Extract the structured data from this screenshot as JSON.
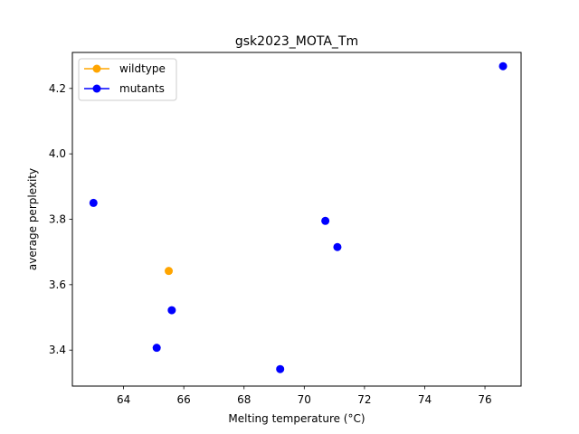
{
  "chart_data": {
    "type": "scatter",
    "title": "gsk2023_MOTA_Tm",
    "xlabel": "Melting temperature (°C)",
    "ylabel": "average perplexity",
    "xlim": [
      62.3,
      77.2
    ],
    "ylim": [
      3.29,
      4.31
    ],
    "xticks": [
      64,
      66,
      68,
      70,
      72,
      74,
      76
    ],
    "yticks": [
      3.4,
      3.6,
      3.8,
      4.0,
      4.2
    ],
    "legend_position": "upper-left",
    "grid": false,
    "series": [
      {
        "name": "wildtype",
        "color": "#ffa500",
        "points": [
          {
            "x": 65.5,
            "y": 3.642
          }
        ]
      },
      {
        "name": "mutants",
        "color": "#0000ff",
        "points": [
          {
            "x": 63.0,
            "y": 3.85
          },
          {
            "x": 65.1,
            "y": 3.407
          },
          {
            "x": 65.6,
            "y": 3.522
          },
          {
            "x": 69.2,
            "y": 3.342
          },
          {
            "x": 70.7,
            "y": 3.795
          },
          {
            "x": 71.1,
            "y": 3.715
          },
          {
            "x": 76.6,
            "y": 4.268
          }
        ]
      }
    ]
  }
}
